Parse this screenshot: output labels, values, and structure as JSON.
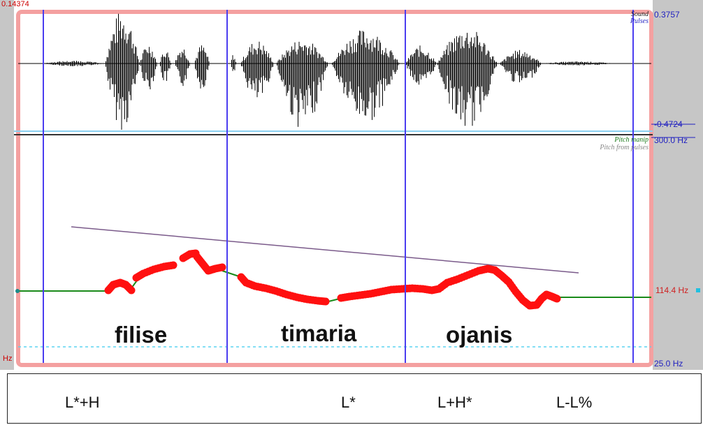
{
  "window": {
    "time_start": "0.14374",
    "left_hz_fragment": "Hz"
  },
  "sound_panel": {
    "legend_primary": "Sound",
    "legend_secondary": "Pulses",
    "max_label": "0.3757",
    "min_label": "-0.4724"
  },
  "pitch_panel": {
    "legend_primary": "Pitch manip",
    "legend_secondary": "Pitch from pulses",
    "top_label": "300.0 Hz",
    "mid_label": "114.4 Hz",
    "bottom_label": "25.0 Hz"
  },
  "words": [
    "filise",
    "timaria",
    "ojanis"
  ],
  "tones": [
    "L*+H",
    "L*",
    "L+H*",
    "L-L%"
  ],
  "colors": {
    "frame_border": "#f4a0a0",
    "side_panel": "#c6c6c6",
    "boundary": "#4b3df0",
    "waveform": "#000000",
    "pitch_points": "#ff1010",
    "pitch_line": "#1a8a1a",
    "declination": "#7a5a8a",
    "floor_dashed": "#5ad4f0",
    "axis_label": "#2020c0"
  }
}
